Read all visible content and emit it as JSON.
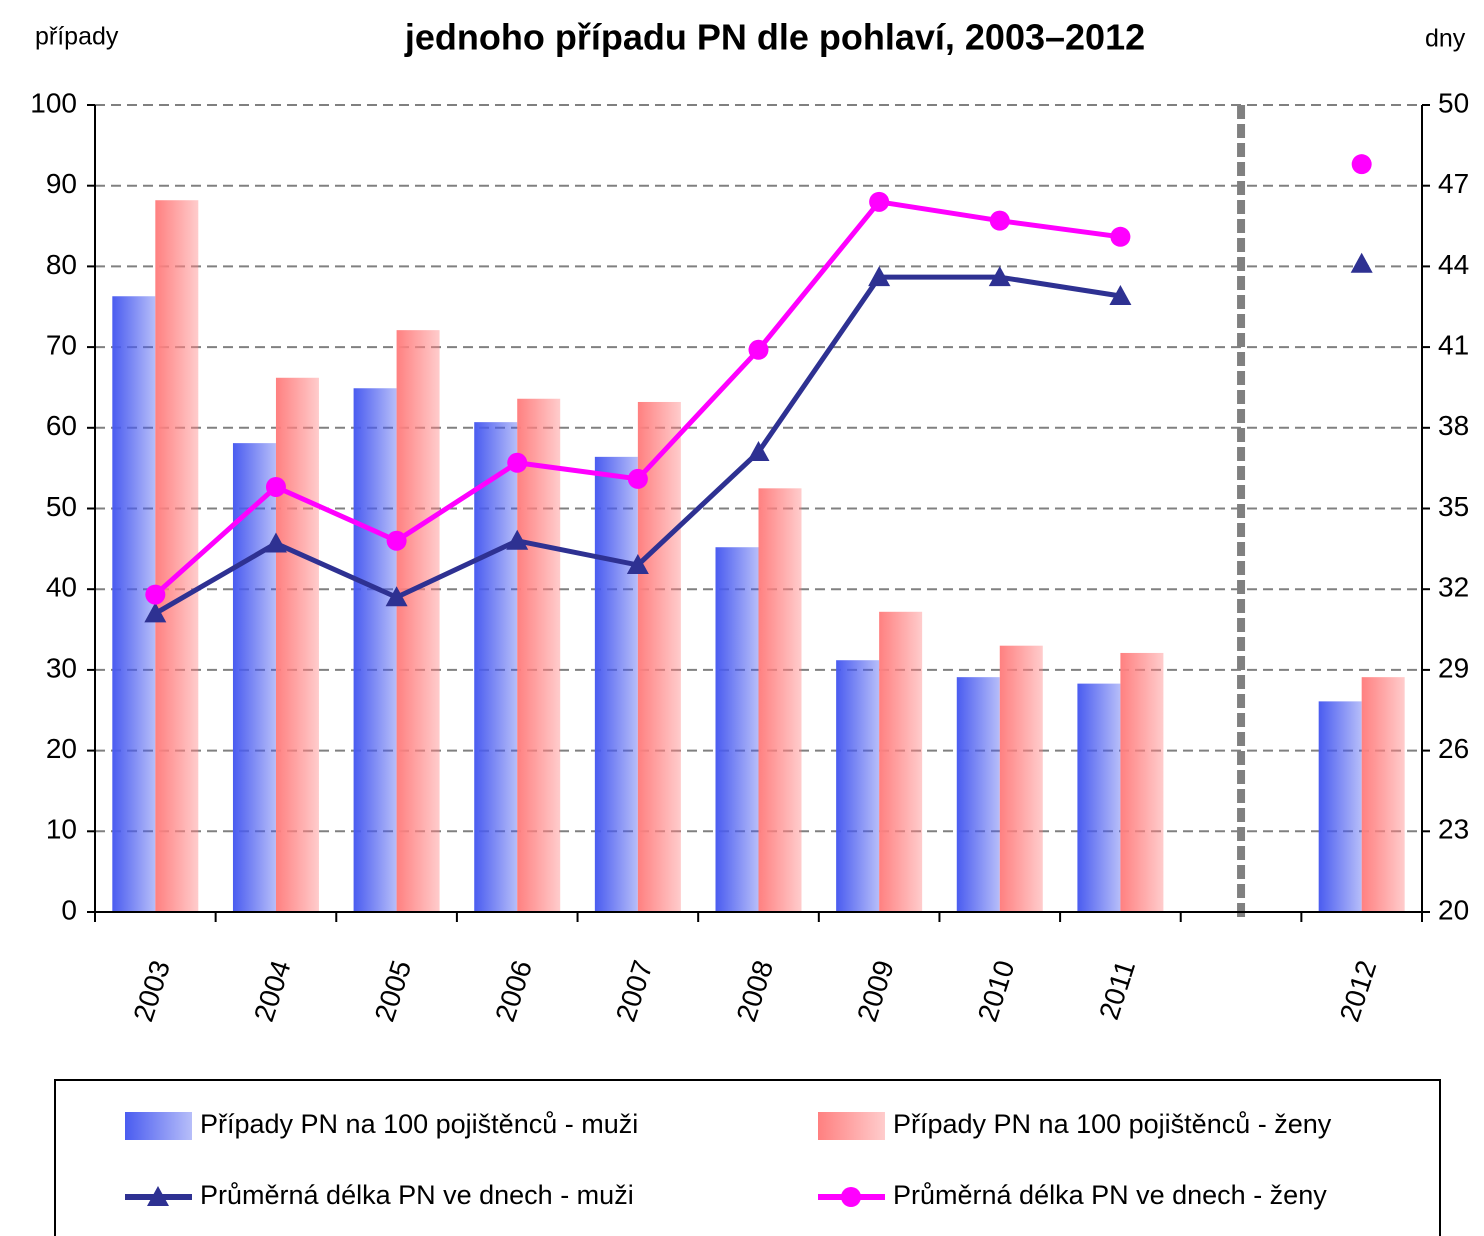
{
  "chart_data": {
    "type": "bar",
    "title": "jednoho případu PN dle pohlaví, 2003–2012",
    "ylabel": "případy",
    "y2label": "dny",
    "categories": [
      "2003",
      "2004",
      "2005",
      "2006",
      "2007",
      "2008",
      "2009",
      "2010",
      "2011",
      null,
      "2012"
    ],
    "series": [
      {
        "name": "Případy PN na 100 pojištěnců - muži",
        "type": "bar",
        "color": "#4a5cf0",
        "values": [
          76.3,
          58.1,
          64.9,
          60.7,
          56.4,
          45.2,
          31.2,
          29.1,
          28.3,
          null,
          26.1
        ]
      },
      {
        "name": "Případy PN na 100 pojištěnců - ženy",
        "type": "bar",
        "color": "#ff8080",
        "values": [
          88.2,
          66.2,
          72.1,
          63.6,
          63.2,
          52.5,
          37.2,
          33.0,
          32.1,
          null,
          29.1
        ]
      },
      {
        "name": "Průměrná délka PN ve dnech - muži",
        "type": "line",
        "marker": "triangle",
        "axis": "y2",
        "color": "#2e3192",
        "values": [
          31.1,
          33.7,
          31.7,
          33.8,
          32.9,
          37.1,
          43.6,
          43.6,
          42.9,
          null,
          44.1
        ]
      },
      {
        "name": "Průměrná délka PN ve dnech - ženy",
        "type": "line",
        "marker": "circle",
        "axis": "y2",
        "color": "#ff00ff",
        "values": [
          31.8,
          35.8,
          33.8,
          36.7,
          36.1,
          40.9,
          46.4,
          45.7,
          45.1,
          null,
          47.8
        ]
      }
    ],
    "ylim": [
      0,
      100
    ],
    "yticks": [
      0,
      10,
      20,
      30,
      40,
      50,
      60,
      70,
      80,
      90,
      100
    ],
    "y2lim": [
      20,
      50
    ],
    "y2ticks": [
      20,
      23,
      26,
      29,
      32,
      35,
      38,
      41,
      44,
      47,
      50
    ],
    "grid": true,
    "legend": "bottom"
  }
}
